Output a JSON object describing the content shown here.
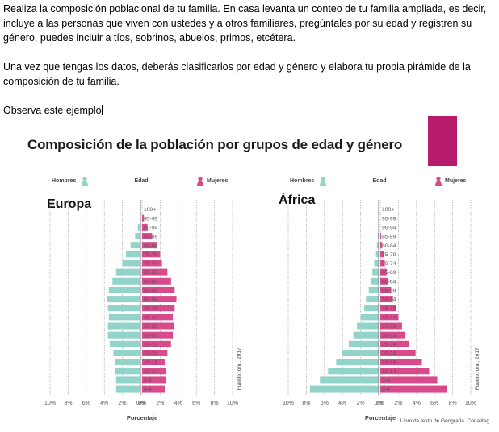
{
  "instructions": {
    "paragraph1": "Realiza la composición poblacional de tu familia. En casa levanta un conteo de tu familia ampliada, es decir, incluye a las personas que viven con ustedes y a otros familiares, pregúntales por su edad y registren su género, puedes incluir a tíos, sobrinos, abuelos, primos, etcétera.",
    "paragraph2": "Una vez que tengas los datos, deberás clasificarlos por edad y género y elabora tu propia pirámide de la composición de tu familia.",
    "paragraph3": "Observa este ejemplo"
  },
  "figure": {
    "title": "Composición de la población por grupos de edad y género",
    "credit": "Libro de texto de Geografía. Conaliteg",
    "source_note": "Fuente: onu, 2017.",
    "men_label": "Hombres",
    "women_label": "Mujeres",
    "age_label": "Edad",
    "xlabel": "Porcentaje",
    "colors": {
      "men": "#92d4c9",
      "women": "#d94a8c",
      "accent": "#b81b6b"
    }
  },
  "chart_data": [
    {
      "type": "bar",
      "title": "Europa",
      "xlabel": "Porcentaje",
      "ylabel": "Edad",
      "xlim": [
        -10,
        10
      ],
      "x_ticks": [
        "10%",
        "8%",
        "6%",
        "4%",
        "2%",
        "0%",
        "0%",
        "2%",
        "4%",
        "6%",
        "8%",
        "10%"
      ],
      "categories": [
        "100+",
        "95-99",
        "90-94",
        "85-89",
        "80-84",
        "75-79",
        "70-74",
        "65-69",
        "60-64",
        "55-59",
        "50-54",
        "45-49",
        "40-44",
        "35-39",
        "30-34",
        "25-29",
        "20-24",
        "15-19",
        "10-14",
        "5-9",
        "0-4"
      ],
      "series": [
        {
          "name": "Hombres",
          "values": [
            0,
            0.1,
            0.3,
            0.6,
            1.1,
            1.6,
            2.0,
            2.7,
            3.1,
            3.5,
            3.7,
            3.6,
            3.5,
            3.6,
            3.6,
            3.4,
            3.0,
            2.8,
            2.8,
            2.7,
            2.7
          ]
        },
        {
          "name": "Mujeres",
          "values": [
            0,
            0.2,
            0.6,
            1.1,
            1.6,
            2.0,
            2.2,
            2.8,
            3.2,
            3.6,
            3.8,
            3.6,
            3.4,
            3.5,
            3.4,
            3.2,
            2.8,
            2.5,
            2.6,
            2.6,
            2.5
          ]
        }
      ]
    },
    {
      "type": "bar",
      "title": "África",
      "xlabel": "Porcentaje",
      "ylabel": "Edad",
      "xlim": [
        -10,
        10
      ],
      "x_ticks": [
        "10%",
        "8%",
        "6%",
        "4%",
        "2%",
        "0%",
        "0%",
        "2%",
        "4%",
        "6%",
        "8%",
        "10%"
      ],
      "categories": [
        "100+",
        "95-99",
        "90-94",
        "85-89",
        "80-84",
        "75-79",
        "70-74",
        "65-69",
        "60-64",
        "55-59",
        "50-54",
        "45-49",
        "40-44",
        "35-39",
        "30-34",
        "25-29",
        "20-24",
        "15-19",
        "10-14",
        "5-9",
        "0-4"
      ],
      "series": [
        {
          "name": "Hombres",
          "values": [
            0,
            0,
            0,
            0.1,
            0.2,
            0.3,
            0.5,
            0.7,
            0.9,
            1.1,
            1.4,
            1.6,
            2.0,
            2.4,
            2.8,
            3.3,
            4.0,
            4.7,
            5.6,
            6.5,
            7.6
          ]
        },
        {
          "name": "Mujeres",
          "values": [
            0,
            0,
            0,
            0.1,
            0.2,
            0.4,
            0.5,
            0.7,
            0.9,
            1.2,
            1.4,
            1.7,
            2.0,
            2.4,
            2.7,
            3.2,
            3.9,
            4.6,
            5.4,
            6.3,
            7.4
          ]
        }
      ]
    }
  ]
}
